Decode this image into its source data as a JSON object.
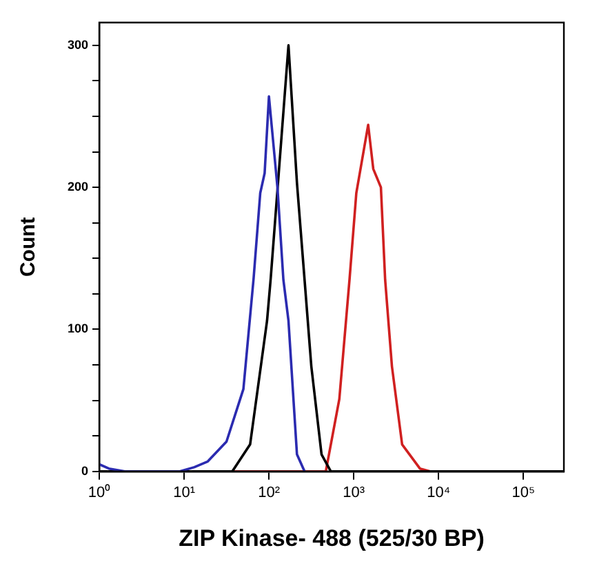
{
  "chart_data": {
    "type": "line",
    "xlabel": "ZIP Kinase- 488 (525/30 BP)",
    "ylabel": "Count",
    "log": "x",
    "grid": false,
    "legend": false,
    "marker": "none",
    "line_style": "solid",
    "xlim": [
      1,
      300000
    ],
    "xticks": [
      {
        "value": 1,
        "label": "10⁰"
      },
      {
        "value": 10,
        "label": "10¹"
      },
      {
        "value": 100,
        "label": "10²"
      },
      {
        "value": 1000,
        "label": "10³"
      },
      {
        "value": 10000,
        "label": "10⁴"
      },
      {
        "value": 100000,
        "label": "10⁵"
      }
    ],
    "ylim": [
      0,
      316
    ],
    "yticks": [
      0,
      {
        "value": 25,
        "label": null
      },
      {
        "value": 50,
        "label": null
      },
      {
        "value": 75,
        "label": null
      },
      100,
      {
        "value": 125,
        "label": null
      },
      {
        "value": 150,
        "label": null
      },
      {
        "value": 175,
        "label": null
      },
      200,
      {
        "value": 225,
        "label": null
      },
      {
        "value": 250,
        "label": null
      },
      {
        "value": 275,
        "label": null
      },
      300
    ],
    "series": [
      {
        "color": "#2b2bb0",
        "x": [
          1,
          1.3,
          2,
          8.9,
          13.2,
          19,
          31.6,
          50,
          66,
          79,
          89,
          100,
          126,
          148,
          170,
          214,
          263
        ],
        "values": [
          5,
          2,
          0,
          0,
          3,
          7,
          21,
          58,
          136,
          196,
          210,
          264,
          200,
          135,
          106,
          12,
          0
        ]
      },
      {
        "color": "#000000",
        "x": [
          1,
          37,
          60,
          95,
          105,
          170,
          214,
          263,
          316,
          417,
          537,
          300000
        ],
        "values": [
          0,
          0,
          19,
          106,
          136,
          300,
          203,
          135,
          74,
          12,
          0,
          0
        ]
      },
      {
        "color": "#d02020",
        "x": [
          1,
          468,
          676,
          891,
          1072,
          1479,
          1698,
          2089,
          2344,
          2818,
          3715,
          6026,
          7943,
          300000
        ],
        "values": [
          0,
          0,
          51,
          135,
          196,
          244,
          213,
          200,
          135,
          74,
          19,
          2,
          0,
          0
        ]
      }
    ]
  }
}
